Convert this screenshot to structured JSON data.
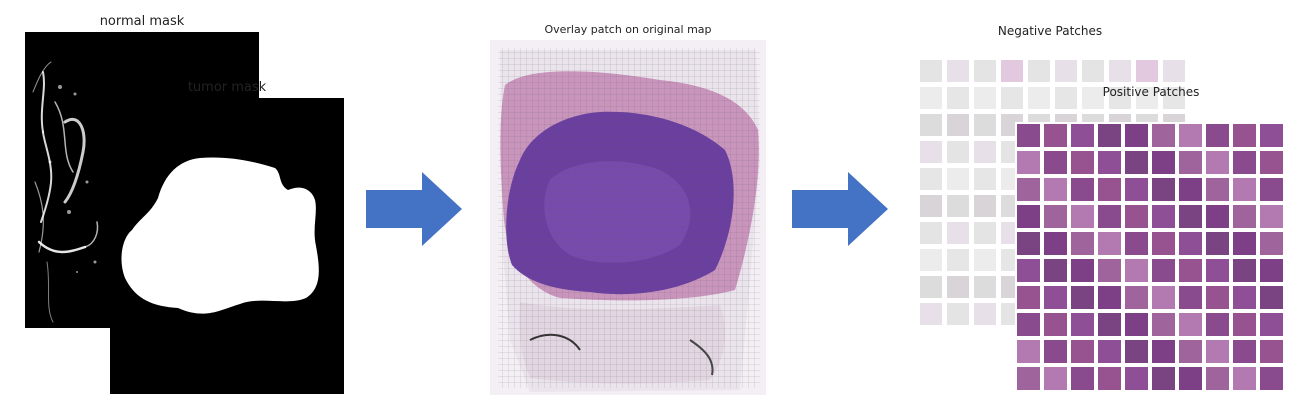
{
  "labels": {
    "normal_mask": "normal mask",
    "tumor_mask": "tumor mask",
    "overlay": "Overlay patch on original map",
    "negative": "Negative Patches",
    "positive": "Positive Patches"
  },
  "colors": {
    "arrow": "#4472c4",
    "tissue_purple": "#6a3fa0",
    "tissue_pink": "#c78ab8",
    "patch_gray": "#e6e6e6",
    "patch_purple": "#8a4a8e"
  },
  "icons": [
    "right-arrow-icon",
    "right-arrow-icon"
  ]
}
